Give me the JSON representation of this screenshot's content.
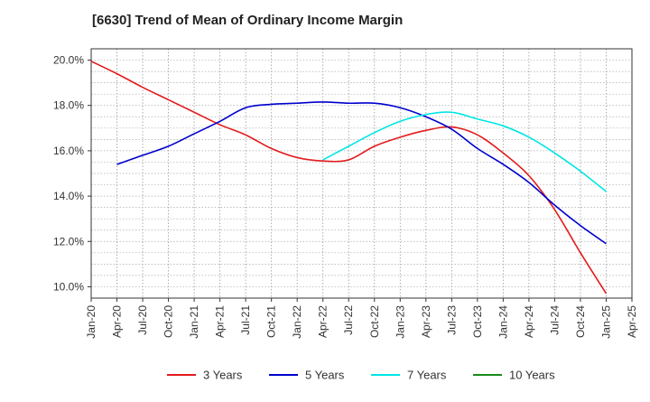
{
  "chart_data": {
    "type": "line",
    "title": "[6630]  Trend of Mean of Ordinary Income Margin",
    "xlabel": "",
    "ylabel": "",
    "x_ticks": [
      "Jan-20",
      "Apr-20",
      "Jul-20",
      "Oct-20",
      "Jan-21",
      "Apr-21",
      "Jul-21",
      "Oct-21",
      "Jan-22",
      "Apr-22",
      "Jul-22",
      "Oct-22",
      "Jan-23",
      "Apr-23",
      "Jul-23",
      "Oct-23",
      "Jan-24",
      "Apr-24",
      "Jul-24",
      "Oct-24",
      "Jan-25",
      "Apr-25"
    ],
    "y_ticks": [
      "10.0%",
      "12.0%",
      "14.0%",
      "16.0%",
      "18.0%",
      "20.0%"
    ],
    "y_tick_values": [
      10,
      12,
      14,
      16,
      18,
      20
    ],
    "ylim": [
      9.5,
      20.5
    ],
    "grid": true,
    "legend_position": "bottom",
    "series": [
      {
        "name": "3 Years",
        "color": "#e31a1c",
        "x": [
          "Jan-20",
          "Apr-20",
          "Jul-20",
          "Oct-20",
          "Jan-21",
          "Apr-21",
          "Jul-21",
          "Oct-21",
          "Jan-22",
          "Apr-22",
          "Jul-22",
          "Oct-22",
          "Jan-23",
          "Apr-23",
          "Jul-23",
          "Oct-23",
          "Jan-24",
          "Apr-24",
          "Jul-24",
          "Oct-24",
          "Jan-25"
        ],
        "values": [
          19.95,
          19.4,
          18.8,
          18.25,
          17.7,
          17.15,
          16.7,
          16.1,
          15.7,
          15.55,
          15.6,
          16.2,
          16.6,
          16.9,
          17.05,
          16.7,
          15.9,
          14.9,
          13.4,
          11.5,
          9.7
        ]
      },
      {
        "name": "5 Years",
        "color": "#0000cc",
        "x": [
          "Jan-20",
          "Apr-20",
          "Jul-20",
          "Oct-20",
          "Jan-21",
          "Apr-21",
          "Jul-21",
          "Oct-21",
          "Jan-22",
          "Apr-22",
          "Jul-22",
          "Oct-22",
          "Jan-23",
          "Apr-23",
          "Jul-23",
          "Oct-23",
          "Jan-24",
          "Apr-24",
          "Jul-24",
          "Oct-24",
          "Jan-25"
        ],
        "values": [
          null,
          15.4,
          15.8,
          16.2,
          16.75,
          17.3,
          17.9,
          18.05,
          18.1,
          18.15,
          18.1,
          18.1,
          17.9,
          17.5,
          16.95,
          16.1,
          15.4,
          14.6,
          13.6,
          12.7,
          11.9
        ]
      },
      {
        "name": "7 Years",
        "color": "#00e5e5",
        "x": [
          "Jan-20",
          "Apr-20",
          "Jul-20",
          "Oct-20",
          "Jan-21",
          "Apr-21",
          "Jul-21",
          "Oct-21",
          "Jan-22",
          "Apr-22",
          "Jul-22",
          "Oct-22",
          "Jan-23",
          "Apr-23",
          "Jul-23",
          "Oct-23",
          "Jan-24",
          "Apr-24",
          "Jul-24",
          "Oct-24",
          "Jan-25"
        ],
        "values": [
          null,
          null,
          null,
          null,
          null,
          null,
          null,
          null,
          null,
          15.6,
          16.2,
          16.8,
          17.3,
          17.6,
          17.7,
          17.4,
          17.1,
          16.6,
          15.9,
          15.1,
          14.2
        ]
      },
      {
        "name": "10 Years",
        "color": "#1a8a1a",
        "x": [],
        "values": []
      }
    ]
  }
}
